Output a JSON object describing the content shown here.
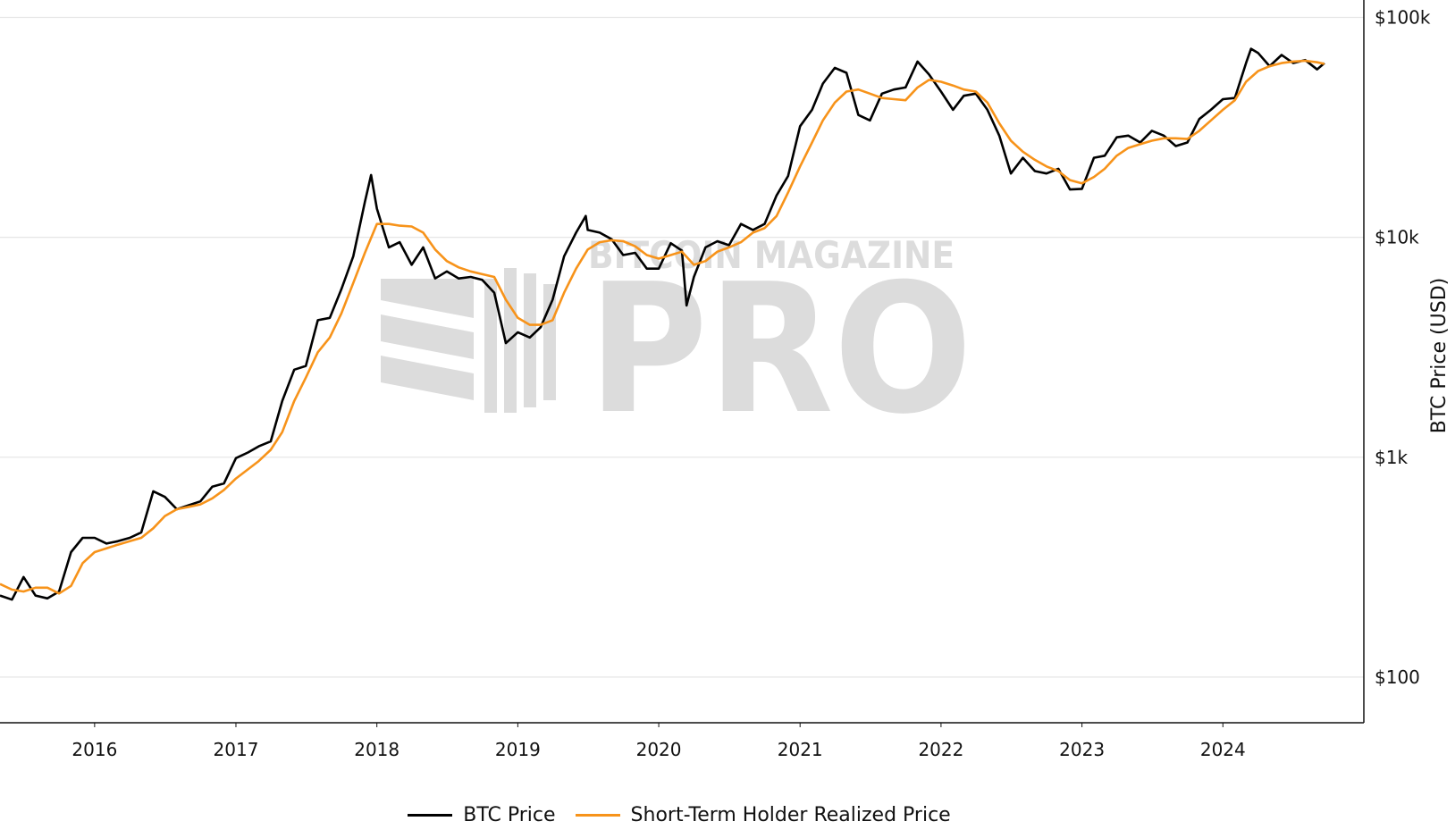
{
  "colors": {
    "btc": "#000000",
    "sth": "#f7931a",
    "grid": "#e6e6e6",
    "watermark": "#dcdcdc"
  },
  "watermark": {
    "top": "BITCOIN MAGAZINE",
    "main": "PRO"
  },
  "legend": {
    "btc_label": "BTC Price",
    "sth_label": "Short-Term Holder Realized Price"
  },
  "chart_data": {
    "type": "line",
    "title": "",
    "xlabel": "",
    "ylabel": "BTC Price (USD)",
    "y_scale": "log",
    "ylim": [
      62,
      120000
    ],
    "xlim": [
      "2015-05-01",
      "2024-12-31"
    ],
    "y_ticks": [
      {
        "value": 100,
        "label": "$100"
      },
      {
        "value": 1000,
        "label": "$1k"
      },
      {
        "value": 10000,
        "label": "$10k"
      },
      {
        "value": 100000,
        "label": "$100k"
      }
    ],
    "x_ticks": [
      {
        "value": "2016-01-01",
        "label": "2016"
      },
      {
        "value": "2017-01-01",
        "label": "2017"
      },
      {
        "value": "2018-01-01",
        "label": "2018"
      },
      {
        "value": "2019-01-01",
        "label": "2019"
      },
      {
        "value": "2020-01-01",
        "label": "2020"
      },
      {
        "value": "2021-01-01",
        "label": "2021"
      },
      {
        "value": "2022-01-01",
        "label": "2022"
      },
      {
        "value": "2023-01-01",
        "label": "2023"
      },
      {
        "value": "2024-01-01",
        "label": "2024"
      }
    ],
    "grid": true,
    "legend_position": "bottom-center",
    "series": [
      {
        "name": "BTC Price",
        "color": "#000000",
        "points": [
          [
            "2015-05-01",
            235
          ],
          [
            "2015-06-01",
            225
          ],
          [
            "2015-07-01",
            285
          ],
          [
            "2015-08-01",
            235
          ],
          [
            "2015-09-01",
            228
          ],
          [
            "2015-10-01",
            245
          ],
          [
            "2015-11-01",
            370
          ],
          [
            "2015-12-01",
            430
          ],
          [
            "2016-01-01",
            430
          ],
          [
            "2016-02-01",
            405
          ],
          [
            "2016-03-01",
            415
          ],
          [
            "2016-04-01",
            430
          ],
          [
            "2016-05-01",
            455
          ],
          [
            "2016-06-01",
            700
          ],
          [
            "2016-07-01",
            660
          ],
          [
            "2016-08-01",
            580
          ],
          [
            "2016-09-01",
            605
          ],
          [
            "2016-10-01",
            630
          ],
          [
            "2016-11-01",
            735
          ],
          [
            "2016-12-01",
            760
          ],
          [
            "2017-01-01",
            990
          ],
          [
            "2017-02-01",
            1050
          ],
          [
            "2017-03-01",
            1120
          ],
          [
            "2017-04-01",
            1180
          ],
          [
            "2017-05-01",
            1800
          ],
          [
            "2017-06-01",
            2500
          ],
          [
            "2017-07-01",
            2600
          ],
          [
            "2017-08-01",
            4200
          ],
          [
            "2017-09-01",
            4300
          ],
          [
            "2017-10-01",
            5800
          ],
          [
            "2017-11-01",
            8200
          ],
          [
            "2017-12-01",
            14500
          ],
          [
            "2017-12-17",
            19200
          ],
          [
            "2018-01-01",
            13500
          ],
          [
            "2018-02-01",
            9000
          ],
          [
            "2018-03-01",
            9500
          ],
          [
            "2018-04-01",
            7500
          ],
          [
            "2018-05-01",
            9000
          ],
          [
            "2018-06-01",
            6500
          ],
          [
            "2018-07-01",
            7000
          ],
          [
            "2018-08-01",
            6500
          ],
          [
            "2018-09-01",
            6600
          ],
          [
            "2018-10-01",
            6400
          ],
          [
            "2018-11-01",
            5600
          ],
          [
            "2018-12-01",
            3300
          ],
          [
            "2019-01-01",
            3700
          ],
          [
            "2019-02-01",
            3500
          ],
          [
            "2019-03-01",
            3900
          ],
          [
            "2019-04-01",
            5200
          ],
          [
            "2019-05-01",
            8200
          ],
          [
            "2019-06-01",
            10500
          ],
          [
            "2019-06-26",
            12500
          ],
          [
            "2019-07-01",
            10800
          ],
          [
            "2019-08-01",
            10500
          ],
          [
            "2019-09-01",
            9800
          ],
          [
            "2019-10-01",
            8300
          ],
          [
            "2019-11-01",
            8500
          ],
          [
            "2019-12-01",
            7200
          ],
          [
            "2020-01-01",
            7200
          ],
          [
            "2020-02-01",
            9400
          ],
          [
            "2020-03-01",
            8700
          ],
          [
            "2020-03-13",
            4900
          ],
          [
            "2020-04-01",
            6600
          ],
          [
            "2020-05-01",
            9000
          ],
          [
            "2020-06-01",
            9600
          ],
          [
            "2020-07-01",
            9200
          ],
          [
            "2020-08-01",
            11500
          ],
          [
            "2020-09-01",
            10800
          ],
          [
            "2020-10-01",
            11500
          ],
          [
            "2020-11-01",
            15500
          ],
          [
            "2020-12-01",
            19000
          ],
          [
            "2021-01-01",
            32000
          ],
          [
            "2021-02-01",
            38000
          ],
          [
            "2021-03-01",
            50000
          ],
          [
            "2021-04-01",
            59000
          ],
          [
            "2021-05-01",
            56000
          ],
          [
            "2021-06-01",
            36000
          ],
          [
            "2021-07-01",
            34000
          ],
          [
            "2021-08-01",
            45000
          ],
          [
            "2021-09-01",
            47000
          ],
          [
            "2021-10-01",
            48000
          ],
          [
            "2021-11-01",
            63000
          ],
          [
            "2021-12-01",
            55000
          ],
          [
            "2022-01-01",
            46000
          ],
          [
            "2022-02-01",
            38000
          ],
          [
            "2022-03-01",
            44000
          ],
          [
            "2022-04-01",
            45000
          ],
          [
            "2022-05-01",
            38000
          ],
          [
            "2022-06-01",
            29000
          ],
          [
            "2022-07-01",
            19500
          ],
          [
            "2022-08-01",
            23000
          ],
          [
            "2022-09-01",
            20000
          ],
          [
            "2022-10-01",
            19500
          ],
          [
            "2022-11-01",
            20500
          ],
          [
            "2022-12-01",
            16500
          ],
          [
            "2023-01-01",
            16600
          ],
          [
            "2023-02-01",
            23000
          ],
          [
            "2023-03-01",
            23500
          ],
          [
            "2023-04-01",
            28500
          ],
          [
            "2023-05-01",
            29000
          ],
          [
            "2023-06-01",
            27000
          ],
          [
            "2023-07-01",
            30500
          ],
          [
            "2023-08-01",
            29000
          ],
          [
            "2023-09-01",
            26000
          ],
          [
            "2023-10-01",
            27000
          ],
          [
            "2023-11-01",
            34500
          ],
          [
            "2023-12-01",
            38000
          ],
          [
            "2024-01-01",
            42500
          ],
          [
            "2024-02-01",
            43000
          ],
          [
            "2024-03-01",
            62000
          ],
          [
            "2024-03-14",
            72000
          ],
          [
            "2024-04-01",
            69000
          ],
          [
            "2024-05-01",
            60000
          ],
          [
            "2024-06-01",
            67500
          ],
          [
            "2024-07-01",
            62000
          ],
          [
            "2024-08-01",
            64000
          ],
          [
            "2024-09-01",
            58000
          ],
          [
            "2024-09-20",
            62000
          ]
        ]
      },
      {
        "name": "Short-Term Holder Realized Price",
        "color": "#f7931a",
        "points": [
          [
            "2015-05-01",
            265
          ],
          [
            "2015-06-01",
            250
          ],
          [
            "2015-07-01",
            245
          ],
          [
            "2015-08-01",
            255
          ],
          [
            "2015-09-01",
            255
          ],
          [
            "2015-10-01",
            240
          ],
          [
            "2015-11-01",
            260
          ],
          [
            "2015-12-01",
            330
          ],
          [
            "2016-01-01",
            370
          ],
          [
            "2016-02-01",
            385
          ],
          [
            "2016-03-01",
            400
          ],
          [
            "2016-04-01",
            415
          ],
          [
            "2016-05-01",
            430
          ],
          [
            "2016-06-01",
            475
          ],
          [
            "2016-07-01",
            540
          ],
          [
            "2016-08-01",
            580
          ],
          [
            "2016-09-01",
            595
          ],
          [
            "2016-10-01",
            610
          ],
          [
            "2016-11-01",
            650
          ],
          [
            "2016-12-01",
            710
          ],
          [
            "2017-01-01",
            800
          ],
          [
            "2017-02-01",
            880
          ],
          [
            "2017-03-01",
            960
          ],
          [
            "2017-04-01",
            1080
          ],
          [
            "2017-05-01",
            1300
          ],
          [
            "2017-06-01",
            1800
          ],
          [
            "2017-07-01",
            2300
          ],
          [
            "2017-08-01",
            3000
          ],
          [
            "2017-09-01",
            3500
          ],
          [
            "2017-10-01",
            4500
          ],
          [
            "2017-11-01",
            6200
          ],
          [
            "2017-12-01",
            8500
          ],
          [
            "2018-01-01",
            11500
          ],
          [
            "2018-02-01",
            11500
          ],
          [
            "2018-03-01",
            11300
          ],
          [
            "2018-04-01",
            11200
          ],
          [
            "2018-05-01",
            10500
          ],
          [
            "2018-06-01",
            8800
          ],
          [
            "2018-07-01",
            7800
          ],
          [
            "2018-08-01",
            7300
          ],
          [
            "2018-09-01",
            7000
          ],
          [
            "2018-10-01",
            6800
          ],
          [
            "2018-11-01",
            6600
          ],
          [
            "2018-12-01",
            5200
          ],
          [
            "2019-01-01",
            4300
          ],
          [
            "2019-02-01",
            4000
          ],
          [
            "2019-03-01",
            4000
          ],
          [
            "2019-04-01",
            4200
          ],
          [
            "2019-05-01",
            5600
          ],
          [
            "2019-06-01",
            7200
          ],
          [
            "2019-07-01",
            8800
          ],
          [
            "2019-08-01",
            9500
          ],
          [
            "2019-09-01",
            9700
          ],
          [
            "2019-10-01",
            9600
          ],
          [
            "2019-11-01",
            9100
          ],
          [
            "2019-12-01",
            8300
          ],
          [
            "2020-01-01",
            8000
          ],
          [
            "2020-02-01",
            8300
          ],
          [
            "2020-03-01",
            8600
          ],
          [
            "2020-04-01",
            7500
          ],
          [
            "2020-05-01",
            7800
          ],
          [
            "2020-06-01",
            8600
          ],
          [
            "2020-07-01",
            9000
          ],
          [
            "2020-08-01",
            9500
          ],
          [
            "2020-09-01",
            10500
          ],
          [
            "2020-10-01",
            11000
          ],
          [
            "2020-11-01",
            12500
          ],
          [
            "2020-12-01",
            16000
          ],
          [
            "2021-01-01",
            21000
          ],
          [
            "2021-02-01",
            27000
          ],
          [
            "2021-03-01",
            34000
          ],
          [
            "2021-04-01",
            41000
          ],
          [
            "2021-05-01",
            46000
          ],
          [
            "2021-06-01",
            47000
          ],
          [
            "2021-07-01",
            45000
          ],
          [
            "2021-08-01",
            43000
          ],
          [
            "2021-09-01",
            42500
          ],
          [
            "2021-10-01",
            42000
          ],
          [
            "2021-11-01",
            48000
          ],
          [
            "2021-12-01",
            52000
          ],
          [
            "2022-01-01",
            51000
          ],
          [
            "2022-02-01",
            49000
          ],
          [
            "2022-03-01",
            47000
          ],
          [
            "2022-04-01",
            46000
          ],
          [
            "2022-05-01",
            41000
          ],
          [
            "2022-06-01",
            33000
          ],
          [
            "2022-07-01",
            27500
          ],
          [
            "2022-08-01",
            24500
          ],
          [
            "2022-09-01",
            22500
          ],
          [
            "2022-10-01",
            21000
          ],
          [
            "2022-11-01",
            20000
          ],
          [
            "2022-12-01",
            18200
          ],
          [
            "2023-01-01",
            17600
          ],
          [
            "2023-02-01",
            18800
          ],
          [
            "2023-03-01",
            20500
          ],
          [
            "2023-04-01",
            23500
          ],
          [
            "2023-05-01",
            25500
          ],
          [
            "2023-06-01",
            26500
          ],
          [
            "2023-07-01",
            27500
          ],
          [
            "2023-08-01",
            28200
          ],
          [
            "2023-09-01",
            28200
          ],
          [
            "2023-10-01",
            28000
          ],
          [
            "2023-11-01",
            30500
          ],
          [
            "2023-12-01",
            34000
          ],
          [
            "2024-01-01",
            38000
          ],
          [
            "2024-02-01",
            42000
          ],
          [
            "2024-03-01",
            51000
          ],
          [
            "2024-04-01",
            57000
          ],
          [
            "2024-05-01",
            60000
          ],
          [
            "2024-06-01",
            62000
          ],
          [
            "2024-07-01",
            63000
          ],
          [
            "2024-08-01",
            63500
          ],
          [
            "2024-09-01",
            62500
          ],
          [
            "2024-09-20",
            61500
          ]
        ]
      }
    ]
  }
}
